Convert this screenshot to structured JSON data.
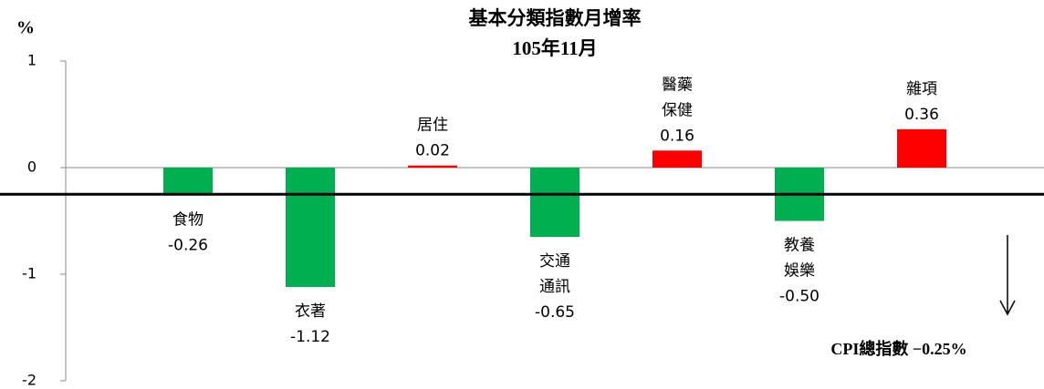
{
  "chart_data": {
    "type": "bar",
    "title": [
      "基本分類指數月增率",
      "105年11月"
    ],
    "y_unit": "%",
    "categories": [
      [
        "食物"
      ],
      [
        "衣著"
      ],
      [
        "居住"
      ],
      [
        "交通",
        "通訊"
      ],
      [
        "醫藥",
        "保健"
      ],
      [
        "教養",
        "娛樂"
      ],
      [
        "雜項"
      ]
    ],
    "values": [
      -0.26,
      -1.12,
      0.02,
      -0.65,
      0.16,
      -0.5,
      0.36
    ],
    "value_labels": [
      "-0.26",
      "-1.12",
      "0.02",
      "-0.65",
      "0.16",
      "-0.50",
      "0.36"
    ],
    "positive_color": "#ff0000",
    "negative_color": "#00b050",
    "ylim": [
      -2,
      1
    ],
    "yticks": [
      -2,
      -1,
      0,
      1
    ],
    "grid": false,
    "reference_line": -0.25,
    "annotation": "CPI總指數 −0.25%"
  }
}
